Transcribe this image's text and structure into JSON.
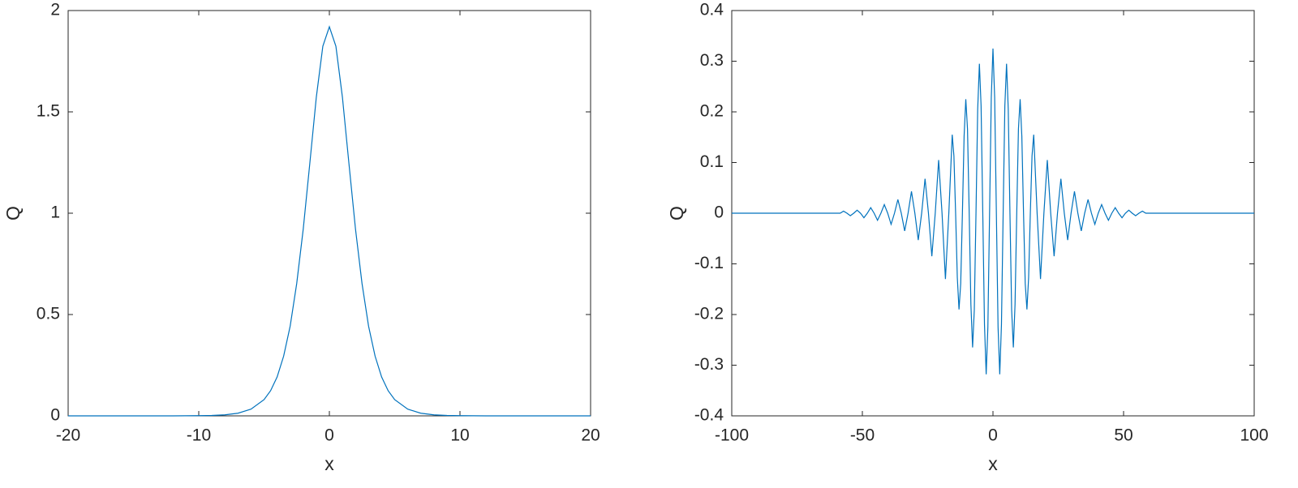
{
  "chart_data": [
    {
      "type": "line",
      "xlabel": "x",
      "ylabel": "Q",
      "color": "#0072bd",
      "xlim": [
        -20,
        20
      ],
      "xticks": [
        -20,
        -10,
        0,
        10,
        20
      ],
      "ylim": [
        0,
        2
      ],
      "yticks": [
        0,
        0.5,
        1,
        1.5,
        2
      ],
      "x": [
        -20,
        -15,
        -12,
        -10,
        -9,
        -8,
        -7,
        -6,
        -5,
        -4.5,
        -4,
        -3.5,
        -3,
        -2.5,
        -2,
        -1.5,
        -1,
        -0.5,
        0,
        0.5,
        1,
        1.5,
        2,
        2.5,
        3,
        3.5,
        4,
        4.5,
        5,
        6,
        7,
        8,
        9,
        10,
        12,
        15,
        20
      ],
      "values": [
        0,
        0,
        0,
        0.001,
        0.002,
        0.005,
        0.013,
        0.033,
        0.08,
        0.124,
        0.192,
        0.295,
        0.443,
        0.653,
        0.922,
        1.244,
        1.572,
        1.824,
        1.92,
        1.824,
        1.572,
        1.244,
        0.922,
        0.653,
        0.443,
        0.295,
        0.192,
        0.124,
        0.08,
        0.033,
        0.013,
        0.005,
        0.002,
        0.001,
        0,
        0,
        0
      ]
    },
    {
      "type": "line",
      "xlabel": "x",
      "ylabel": "Q",
      "color": "#0072bd",
      "xlim": [
        -100,
        100
      ],
      "xticks": [
        -100,
        -50,
        0,
        50,
        100
      ],
      "ylim": [
        -0.4,
        0.4
      ],
      "yticks": [
        -0.4,
        -0.3,
        -0.2,
        -0.1,
        0,
        0.1,
        0.2,
        0.3,
        0.4
      ],
      "x": [
        -100,
        -90,
        -80,
        -70,
        -58.5,
        -57.2,
        -55.9,
        -54.6,
        -53.3,
        -52,
        -50.7,
        -49.4,
        -48.1,
        -46.8,
        -45.5,
        -44.2,
        -42.9,
        -41.6,
        -40.3,
        -39,
        -37.7,
        -36.4,
        -35.1,
        -33.8,
        -32.5,
        -31.2,
        -29.9,
        -28.6,
        -27.3,
        -26,
        -24.7,
        -23.4,
        -22.1,
        -20.8,
        -19.5,
        -18.2,
        -16.9,
        -15.6,
        -14.95,
        -14.3,
        -13.65,
        -13,
        -12.35,
        -11.7,
        -11.05,
        -10.4,
        -9.75,
        -9.1,
        -8.45,
        -7.8,
        -7.15,
        -6.5,
        -5.85,
        -5.2,
        -4.55,
        -3.9,
        -3.25,
        -2.6,
        -1.95,
        -1.3,
        -0.65,
        0,
        0.65,
        1.3,
        1.95,
        2.6,
        3.25,
        3.9,
        4.55,
        5.2,
        5.85,
        6.5,
        7.15,
        7.8,
        8.45,
        9.1,
        9.75,
        10.4,
        11.05,
        11.7,
        12.35,
        13,
        13.65,
        14.3,
        14.95,
        15.6,
        16.9,
        18.2,
        19.5,
        20.8,
        22.1,
        23.4,
        24.7,
        26,
        27.3,
        28.6,
        29.9,
        31.2,
        32.5,
        33.8,
        35.1,
        36.4,
        37.7,
        39,
        40.3,
        41.6,
        42.9,
        44.2,
        45.5,
        46.8,
        48.1,
        49.4,
        50.7,
        52,
        53.3,
        54.6,
        55.9,
        57.2,
        58.5,
        70,
        80,
        90,
        100
      ],
      "values": [
        0,
        0,
        0,
        0,
        0,
        0.004,
        0,
        -0.005,
        0,
        0.006,
        0,
        -0.009,
        0,
        0.011,
        0,
        -0.014,
        0,
        0.017,
        0,
        -0.022,
        0,
        0.027,
        0,
        -0.035,
        0,
        0.043,
        0,
        -0.053,
        0,
        0.068,
        0,
        -0.085,
        0,
        0.105,
        0,
        -0.13,
        0,
        0.155,
        0.113,
        0,
        -0.127,
        -0.19,
        -0.139,
        0,
        0.152,
        0.225,
        0.166,
        0,
        -0.18,
        -0.265,
        -0.191,
        0,
        0.205,
        0.295,
        0.212,
        0,
        -0.22,
        -0.318,
        -0.225,
        0,
        0.228,
        0.325,
        0.228,
        0,
        -0.225,
        -0.318,
        -0.22,
        0,
        0.212,
        0.295,
        0.205,
        0,
        -0.191,
        -0.265,
        -0.18,
        0,
        0.166,
        0.225,
        0.152,
        0,
        -0.139,
        -0.19,
        -0.127,
        0,
        0.113,
        0.155,
        0,
        -0.13,
        0,
        0.105,
        0,
        -0.085,
        0,
        0.068,
        0,
        -0.053,
        0,
        0.043,
        0,
        -0.035,
        0,
        0.027,
        0,
        -0.022,
        0,
        0.017,
        0,
        -0.014,
        0,
        0.011,
        0,
        -0.009,
        0,
        0.006,
        0,
        -0.005,
        0,
        0.004,
        0,
        0,
        0,
        0,
        0
      ]
    }
  ]
}
